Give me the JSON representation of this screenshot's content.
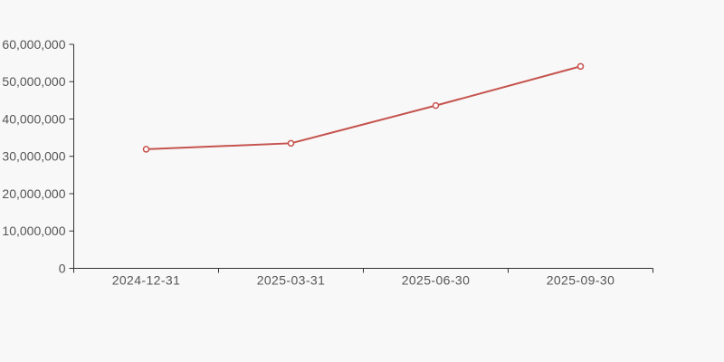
{
  "page": {
    "background": "#f8f8f8"
  },
  "chart_data": {
    "type": "line",
    "title": "",
    "xlabel": "",
    "ylabel": "",
    "categories": [
      "2024-12-31",
      "2025-03-31",
      "2025-06-30",
      "2025-09-30"
    ],
    "series": [
      {
        "name": "value",
        "values": [
          31900000,
          33500000,
          43600000,
          54100000
        ],
        "color": "#c5534e",
        "marker": "open-circle",
        "marker_fill": "#ffffff",
        "line_width": 2
      }
    ],
    "ylim": [
      0,
      60000000
    ],
    "y_ticks": [
      0,
      10000000,
      20000000,
      30000000,
      40000000,
      50000000,
      60000000
    ],
    "y_tick_labels": [
      "0",
      "10,000,000",
      "20,000,000",
      "30,000,000",
      "40,000,000",
      "50,000,000",
      "60,000,000"
    ],
    "grid": false,
    "legend": "none",
    "axis_color": "#333333",
    "tick_label_color": "#555555",
    "background": "#f8f8f8"
  }
}
